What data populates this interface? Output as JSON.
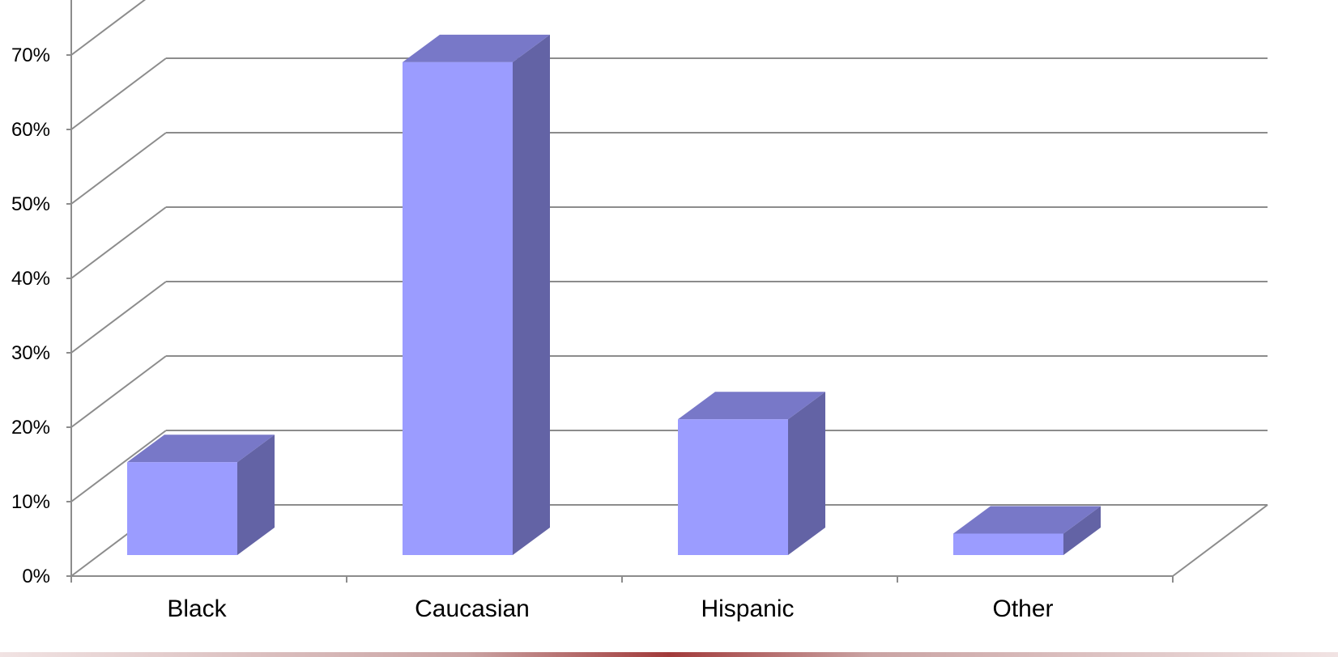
{
  "chart_data": {
    "type": "bar",
    "style": "3d-column",
    "categories": [
      "Black",
      "Caucasian",
      "Hispanic",
      "Other"
    ],
    "values": [
      13,
      69,
      19,
      3
    ],
    "ylim": [
      0,
      70
    ],
    "yticks": [
      "0%",
      "10%",
      "20%",
      "30%",
      "40%",
      "50%",
      "60%",
      "70%"
    ],
    "y_tick_values": [
      0,
      10,
      20,
      30,
      40,
      50,
      60,
      70
    ],
    "grid": true,
    "legend": "none",
    "colors": {
      "front": "#9b9cff",
      "top": "#7878c8",
      "side": "#6363a5",
      "grid": "#8c8c8c"
    }
  }
}
